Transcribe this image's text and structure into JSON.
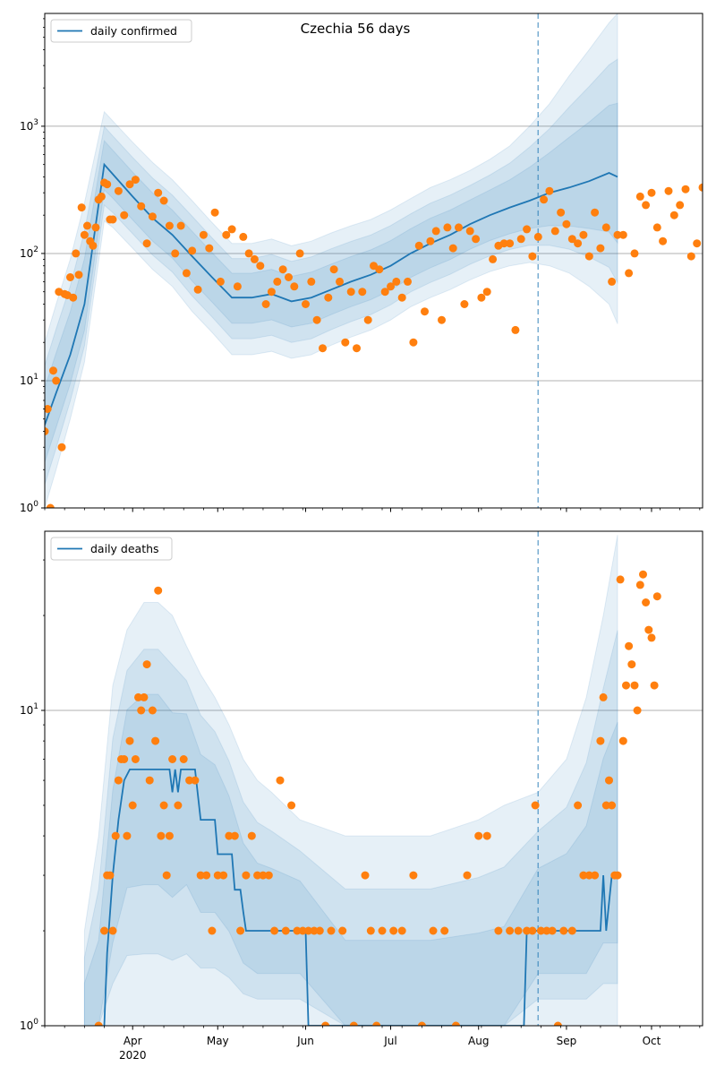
{
  "chart_data": [
    {
      "type": "line",
      "title": "Czechia 56 days",
      "xlabel": "",
      "ylabel": "",
      "yscale": "log",
      "ylim": [
        1,
        7700
      ],
      "grid": "horizontal at decades",
      "legend_placement": "top-left",
      "legend": [
        "daily confirmed"
      ],
      "colors": {
        "line": "#1f77b4",
        "points": "#ff7f0e",
        "band": "#1f77b4",
        "vline": "#1f77b4"
      },
      "ytick_labels": [
        "10^0",
        "10^1",
        "10^2",
        "10^3"
      ],
      "ytick_values": [
        1,
        10,
        100,
        1000
      ],
      "xtick_labels": [
        "Apr",
        "May",
        "Jun",
        "Jul",
        "Aug",
        "Sep",
        "Oct"
      ],
      "xtick_dates": [
        "2020-04-01",
        "2020-05-01",
        "2020-06-01",
        "2020-07-01",
        "2020-08-01",
        "2020-09-01",
        "2020-10-01"
      ],
      "xlim": [
        "2020-03-01",
        "2020-10-19"
      ],
      "vline_date": "2020-08-22",
      "series": [
        {
          "name": "daily confirmed",
          "kind": "line",
          "x": [
            "2020-03-01",
            "2020-03-05",
            "2020-03-10",
            "2020-03-15",
            "2020-03-22",
            "2020-03-25",
            "2020-04-01",
            "2020-04-08",
            "2020-04-15",
            "2020-04-22",
            "2020-04-29",
            "2020-05-06",
            "2020-05-13",
            "2020-05-20",
            "2020-05-27",
            "2020-06-03",
            "2020-06-10",
            "2020-06-17",
            "2020-06-24",
            "2020-07-01",
            "2020-07-08",
            "2020-07-15",
            "2020-07-22",
            "2020-07-29",
            "2020-08-05",
            "2020-08-12",
            "2020-08-19",
            "2020-08-26",
            "2020-09-02",
            "2020-09-09",
            "2020-09-16",
            "2020-09-19"
          ],
          "y": [
            4.5,
            8,
            16,
            40,
            500,
            420,
            280,
            190,
            140,
            95,
            65,
            45,
            45,
            48,
            42,
            45,
            52,
            60,
            68,
            80,
            100,
            120,
            140,
            170,
            200,
            230,
            260,
            300,
            330,
            370,
            430,
            400
          ]
        },
        {
          "name": "daily confirmed interval",
          "kind": "band",
          "x": [
            "2020-03-01",
            "2020-03-05",
            "2020-03-10",
            "2020-03-15",
            "2020-03-22",
            "2020-03-25",
            "2020-04-01",
            "2020-04-08",
            "2020-04-15",
            "2020-04-22",
            "2020-04-29",
            "2020-05-06",
            "2020-05-13",
            "2020-05-20",
            "2020-05-27",
            "2020-06-03",
            "2020-06-10",
            "2020-06-17",
            "2020-06-24",
            "2020-07-01",
            "2020-07-08",
            "2020-07-15",
            "2020-07-22",
            "2020-07-29",
            "2020-08-05",
            "2020-08-12",
            "2020-08-19",
            "2020-08-26",
            "2020-09-02",
            "2020-09-09",
            "2020-09-16",
            "2020-09-19"
          ],
          "lower": [
            1,
            2,
            5,
            14,
            180,
            160,
            110,
            75,
            55,
            35,
            24,
            16,
            16,
            17,
            15,
            16,
            19,
            22,
            25,
            30,
            38,
            45,
            52,
            62,
            72,
            80,
            85,
            80,
            70,
            55,
            40,
            28
          ],
          "upper": [
            20,
            40,
            90,
            250,
            1300,
            1100,
            750,
            520,
            380,
            260,
            175,
            120,
            120,
            130,
            115,
            125,
            145,
            165,
            185,
            220,
            270,
            330,
            380,
            450,
            550,
            700,
            1000,
            1500,
            2500,
            4000,
            6500,
            7700
          ]
        },
        {
          "name": "observed",
          "kind": "scatter",
          "x": [
            "2020-03-01",
            "2020-03-02",
            "2020-03-03",
            "2020-03-04",
            "2020-03-05",
            "2020-03-06",
            "2020-03-07",
            "2020-03-08",
            "2020-03-09",
            "2020-03-10",
            "2020-03-11",
            "2020-03-12",
            "2020-03-13",
            "2020-03-14",
            "2020-03-15",
            "2020-03-16",
            "2020-03-17",
            "2020-03-18",
            "2020-03-19",
            "2020-03-20",
            "2020-03-21",
            "2020-03-22",
            "2020-03-23",
            "2020-03-24",
            "2020-03-25",
            "2020-03-27",
            "2020-03-29",
            "2020-03-31",
            "2020-04-02",
            "2020-04-04",
            "2020-04-06",
            "2020-04-08",
            "2020-04-10",
            "2020-04-12",
            "2020-04-14",
            "2020-04-16",
            "2020-04-18",
            "2020-04-20",
            "2020-04-22",
            "2020-04-24",
            "2020-04-26",
            "2020-04-28",
            "2020-04-30",
            "2020-05-02",
            "2020-05-04",
            "2020-05-06",
            "2020-05-08",
            "2020-05-10",
            "2020-05-12",
            "2020-05-14",
            "2020-05-16",
            "2020-05-18",
            "2020-05-20",
            "2020-05-22",
            "2020-05-24",
            "2020-05-26",
            "2020-05-28",
            "2020-05-30",
            "2020-06-01",
            "2020-06-03",
            "2020-06-05",
            "2020-06-07",
            "2020-06-09",
            "2020-06-11",
            "2020-06-13",
            "2020-06-15",
            "2020-06-17",
            "2020-06-19",
            "2020-06-21",
            "2020-06-23",
            "2020-06-25",
            "2020-06-27",
            "2020-06-29",
            "2020-07-01",
            "2020-07-03",
            "2020-07-05",
            "2020-07-07",
            "2020-07-09",
            "2020-07-11",
            "2020-07-13",
            "2020-07-15",
            "2020-07-17",
            "2020-07-19",
            "2020-07-21",
            "2020-07-23",
            "2020-07-25",
            "2020-07-27",
            "2020-07-29",
            "2020-07-31",
            "2020-08-02",
            "2020-08-04",
            "2020-08-06",
            "2020-08-08",
            "2020-08-10",
            "2020-08-12",
            "2020-08-14",
            "2020-08-16",
            "2020-08-18",
            "2020-08-20",
            "2020-08-22",
            "2020-08-24",
            "2020-08-26",
            "2020-08-28",
            "2020-08-30",
            "2020-09-01",
            "2020-09-03",
            "2020-09-05",
            "2020-09-07",
            "2020-09-09",
            "2020-09-11",
            "2020-09-13",
            "2020-09-15",
            "2020-09-17",
            "2020-09-19",
            "2020-09-21",
            "2020-09-23",
            "2020-09-25",
            "2020-09-27",
            "2020-09-29",
            "2020-10-01",
            "2020-10-03",
            "2020-10-05",
            "2020-10-07",
            "2020-10-09",
            "2020-10-11",
            "2020-10-13",
            "2020-10-15",
            "2020-10-17",
            "2020-10-19"
          ],
          "y": [
            4,
            6,
            1,
            12,
            10,
            50,
            3,
            48,
            47,
            65,
            45,
            100,
            68,
            230,
            140,
            165,
            125,
            115,
            160,
            265,
            280,
            360,
            350,
            185,
            185,
            310,
            200,
            350,
            380,
            235,
            120,
            195,
            300,
            260,
            165,
            100,
            165,
            70,
            105,
            52,
            140,
            110,
            210,
            60,
            140,
            155,
            55,
            135,
            100,
            90,
            80,
            40,
            50,
            60,
            75,
            65,
            55,
            100,
            40,
            60,
            30,
            18,
            45,
            75,
            60,
            20,
            50,
            18,
            50,
            30,
            80,
            75,
            50,
            55,
            60,
            45,
            60,
            20,
            115,
            35,
            125,
            150,
            30,
            160,
            110,
            160,
            40,
            150,
            130,
            45,
            50,
            90,
            115,
            120,
            120,
            25,
            130,
            155,
            95,
            135,
            265,
            310,
            150,
            210,
            170,
            130,
            120,
            140,
            95,
            210,
            110,
            160,
            60,
            140,
            140,
            70,
            100,
            280,
            240,
            300,
            160,
            125,
            310,
            200,
            240,
            320,
            95,
            120,
            330
          ]
        }
      ]
    },
    {
      "type": "line",
      "title": "",
      "xlabel": "",
      "ylabel": "",
      "yscale": "log",
      "ylim": [
        1,
        37
      ],
      "grid": "horizontal at decades",
      "legend_placement": "top-left",
      "legend": [
        "daily deaths"
      ],
      "colors": {
        "line": "#1f77b4",
        "points": "#ff7f0e",
        "band": "#1f77b4",
        "vline": "#1f77b4"
      },
      "ytick_labels": [
        "10^0",
        "10^1"
      ],
      "ytick_values": [
        1,
        10
      ],
      "xtick_labels": [
        "Apr",
        "May",
        "Jun",
        "Jul",
        "Aug",
        "Sep",
        "Oct"
      ],
      "xtick_dates": [
        "2020-04-01",
        "2020-05-01",
        "2020-06-01",
        "2020-07-01",
        "2020-08-01",
        "2020-09-01",
        "2020-10-01"
      ],
      "xyear_label": "2020",
      "xlim": [
        "2020-03-01",
        "2020-10-19"
      ],
      "vline_date": "2020-08-22",
      "series": [
        {
          "name": "daily deaths",
          "kind": "line",
          "x": [
            "2020-03-22",
            "2020-03-23",
            "2020-03-25",
            "2020-03-27",
            "2020-03-29",
            "2020-03-31",
            "2020-04-02",
            "2020-04-04",
            "2020-04-06",
            "2020-04-14",
            "2020-04-15",
            "2020-04-16",
            "2020-04-17",
            "2020-04-18",
            "2020-04-23",
            "2020-04-25",
            "2020-04-30",
            "2020-05-01",
            "2020-05-06",
            "2020-05-07",
            "2020-05-09",
            "2020-05-10",
            "2020-05-11",
            "2020-06-01",
            "2020-06-02",
            "2020-06-21",
            "2020-06-22",
            "2020-08-17",
            "2020-08-18",
            "2020-08-22",
            "2020-09-13",
            "2020-09-14",
            "2020-09-15",
            "2020-09-17",
            "2020-09-18",
            "2020-09-19"
          ],
          "y": [
            1,
            1.7,
            3,
            4.5,
            6,
            6.5,
            6.5,
            6.5,
            6.5,
            6.5,
            5.5,
            6.5,
            5.5,
            6.5,
            6.5,
            4.5,
            4.5,
            3.5,
            3.5,
            2.7,
            2.7,
            2.3,
            2,
            2,
            1,
            1,
            1,
            1,
            2,
            2,
            2,
            3,
            2,
            3,
            3,
            3
          ]
        },
        {
          "name": "daily deaths interval",
          "kind": "band",
          "x": [
            "2020-03-15",
            "2020-03-20",
            "2020-03-25",
            "2020-03-30",
            "2020-04-05",
            "2020-04-10",
            "2020-04-15",
            "2020-04-20",
            "2020-04-25",
            "2020-04-30",
            "2020-05-05",
            "2020-05-10",
            "2020-05-15",
            "2020-05-20",
            "2020-05-30",
            "2020-06-15",
            "2020-07-01",
            "2020-07-15",
            "2020-08-01",
            "2020-08-10",
            "2020-08-22",
            "2020-09-01",
            "2020-09-08",
            "2020-09-14",
            "2020-09-19"
          ],
          "lower": [
            1,
            1,
            1,
            1,
            1,
            1,
            1,
            1,
            1,
            1,
            1,
            1,
            1,
            1,
            1,
            1,
            1,
            1,
            1,
            1,
            1,
            1,
            1,
            1,
            1
          ],
          "upper": [
            2,
            4,
            12,
            18,
            22,
            22,
            20,
            16,
            13,
            11,
            9,
            7,
            6,
            5.5,
            4.5,
            4,
            4,
            4,
            4.5,
            5,
            5.5,
            7,
            11,
            20,
            36
          ]
        },
        {
          "name": "observed",
          "kind": "scatter",
          "x": [
            "2020-03-20",
            "2020-03-22",
            "2020-03-23",
            "2020-03-24",
            "2020-03-25",
            "2020-03-26",
            "2020-03-27",
            "2020-03-28",
            "2020-03-29",
            "2020-03-30",
            "2020-03-31",
            "2020-04-01",
            "2020-04-02",
            "2020-04-03",
            "2020-04-04",
            "2020-04-05",
            "2020-04-06",
            "2020-04-07",
            "2020-04-08",
            "2020-04-09",
            "2020-04-10",
            "2020-04-11",
            "2020-04-12",
            "2020-04-13",
            "2020-04-14",
            "2020-04-15",
            "2020-04-17",
            "2020-04-19",
            "2020-04-21",
            "2020-04-23",
            "2020-04-25",
            "2020-04-27",
            "2020-04-29",
            "2020-05-01",
            "2020-05-03",
            "2020-05-05",
            "2020-05-07",
            "2020-05-09",
            "2020-05-11",
            "2020-05-13",
            "2020-05-15",
            "2020-05-17",
            "2020-05-19",
            "2020-05-21",
            "2020-05-23",
            "2020-05-25",
            "2020-05-27",
            "2020-05-29",
            "2020-05-31",
            "2020-06-02",
            "2020-06-04",
            "2020-06-06",
            "2020-06-08",
            "2020-06-10",
            "2020-06-14",
            "2020-06-18",
            "2020-06-22",
            "2020-06-24",
            "2020-06-26",
            "2020-06-28",
            "2020-07-02",
            "2020-07-05",
            "2020-07-09",
            "2020-07-12",
            "2020-07-16",
            "2020-07-20",
            "2020-07-24",
            "2020-07-28",
            "2020-08-01",
            "2020-08-04",
            "2020-08-08",
            "2020-08-12",
            "2020-08-15",
            "2020-08-18",
            "2020-08-20",
            "2020-08-21",
            "2020-08-23",
            "2020-08-25",
            "2020-08-27",
            "2020-08-29",
            "2020-08-31",
            "2020-09-03",
            "2020-09-05",
            "2020-09-07",
            "2020-09-09",
            "2020-09-11",
            "2020-09-13",
            "2020-09-14",
            "2020-09-15",
            "2020-09-16",
            "2020-09-17",
            "2020-09-18",
            "2020-09-19",
            "2020-09-20",
            "2020-09-21",
            "2020-09-22",
            "2020-09-23",
            "2020-09-24",
            "2020-09-25",
            "2020-09-26",
            "2020-09-27",
            "2020-09-28",
            "2020-09-29",
            "2020-09-30",
            "2020-10-01",
            "2020-10-02",
            "2020-10-03"
          ],
          "y": [
            1,
            2,
            3,
            3,
            2,
            4,
            6,
            7,
            7,
            4,
            8,
            5,
            7,
            11,
            10,
            11,
            14,
            6,
            10,
            8,
            24,
            4,
            5,
            3,
            4,
            7,
            5,
            7,
            6,
            6,
            3,
            3,
            2,
            3,
            3,
            4,
            4,
            2,
            3,
            4,
            3,
            3,
            3,
            2,
            6,
            2,
            5,
            2,
            2,
            2,
            2,
            2,
            1,
            2,
            2,
            1,
            3,
            2,
            1,
            2,
            2,
            2,
            3,
            1,
            2,
            2,
            1,
            3,
            4,
            4,
            2,
            2,
            2,
            2,
            2,
            5,
            2,
            2,
            2,
            1,
            2,
            2,
            5,
            3,
            3,
            3,
            8,
            11,
            5,
            6,
            5,
            3,
            3,
            26,
            8,
            12,
            16,
            14,
            12,
            10,
            25,
            27,
            22,
            18,
            17,
            12,
            23
          ]
        }
      ]
    }
  ]
}
